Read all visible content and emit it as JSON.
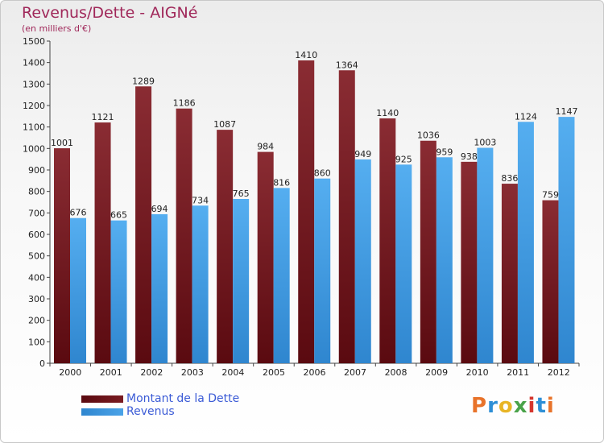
{
  "header": {
    "title": "Revenus/Dette - AIGNé",
    "subtitle": "(en milliers d'€)"
  },
  "colors": {
    "dette": "#7a1c22",
    "revenus": "#4aa3e8",
    "title": "#a0285a",
    "legend_text": "#3b5bd6"
  },
  "chart_data": {
    "type": "bar",
    "title": "Revenus/Dette - AIGNé",
    "subtitle": "(en milliers d'€)",
    "xlabel": "",
    "ylabel": "",
    "ylim": [
      0,
      1500
    ],
    "yticks": [
      0,
      100,
      200,
      300,
      400,
      500,
      600,
      700,
      800,
      900,
      1000,
      1100,
      1200,
      1300,
      1400,
      1500
    ],
    "grid": false,
    "legend_position": "bottom-left",
    "categories": [
      "2000",
      "2001",
      "2002",
      "2003",
      "2004",
      "2005",
      "2006",
      "2007",
      "2008",
      "2009",
      "2010",
      "2011",
      "2012"
    ],
    "series": [
      {
        "name": "Montant de la Dette",
        "color": "#7a1c22",
        "values": [
          1001,
          1121,
          1289,
          1186,
          1087,
          984,
          1410,
          1364,
          1140,
          1036,
          938,
          836,
          759
        ]
      },
      {
        "name": "Revenus",
        "color": "#4aa3e8",
        "values": [
          676,
          665,
          694,
          734,
          765,
          816,
          860,
          949,
          925,
          959,
          1003,
          1124,
          1147
        ]
      }
    ]
  },
  "logo": {
    "text": "Proxiti",
    "letters": [
      "P",
      "r",
      "o",
      "x",
      "i",
      "t",
      "i"
    ]
  }
}
